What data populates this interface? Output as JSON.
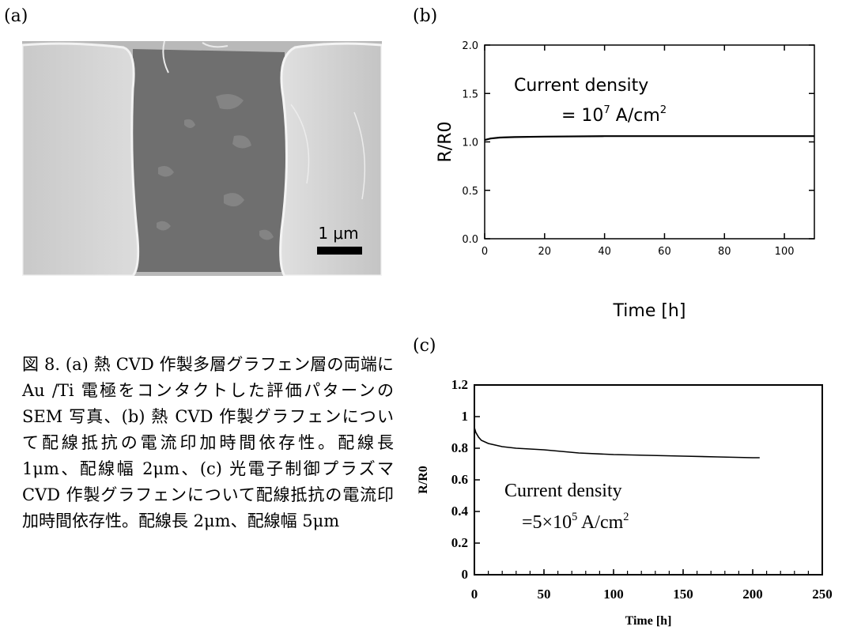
{
  "labels": {
    "a": "(a)",
    "b": "(b)",
    "c": "(c)"
  },
  "sem": {
    "scale_bar": "1 μm"
  },
  "caption": "図 8. (a) 熱 CVD 作製多層グラフェン層の両端にAu /Ti 電極をコンタクトした評価パターンの SEM 写真、(b) 熱 CVD 作製グラフェンについて配線抵抗の電流印加時間依存性。配線長 1μm、配線幅 2μm、(c) 光電子制御プラズマ CVD 作製グラフェンについて配線抵抗の電流印加時間依存性。配線長 2μm、配線幅 5μm",
  "chart_data": [
    {
      "id": "b",
      "type": "line",
      "xlabel": "Time [h]",
      "ylabel": "R/R0",
      "xlim": [
        0,
        110
      ],
      "ylim": [
        0,
        2.0
      ],
      "xticks": [
        0,
        20,
        40,
        60,
        80,
        100
      ],
      "xtick_labels": [
        "0",
        "20",
        "40",
        "60",
        "80",
        "100"
      ],
      "yticks": [
        0,
        0.5,
        1.0,
        1.5,
        2.0
      ],
      "ytick_labels": [
        "0.0",
        "0.5",
        "1.0",
        "1.5",
        "2.0"
      ],
      "annotation": [
        "Current density",
        "= 10",
        "7",
        " A/cm",
        "2"
      ],
      "grid": false,
      "series": [
        {
          "x": [
            0,
            2,
            5,
            10,
            20,
            40,
            60,
            80,
            100,
            110
          ],
          "y": [
            1.02,
            1.035,
            1.045,
            1.05,
            1.055,
            1.06,
            1.06,
            1.06,
            1.06,
            1.06
          ]
        }
      ]
    },
    {
      "id": "c",
      "type": "line",
      "xlabel": "Time [h]",
      "ylabel": "R/R0",
      "xlim": [
        0,
        250
      ],
      "ylim": [
        0,
        1.2
      ],
      "xticks": [
        0,
        50,
        100,
        150,
        200,
        250
      ],
      "xtick_labels": [
        "0",
        "50",
        "100",
        "150",
        "200",
        "250"
      ],
      "yticks": [
        0,
        0.2,
        0.4,
        0.6,
        0.8,
        1.0,
        1.2
      ],
      "ytick_labels": [
        "0",
        "0.2",
        "0.4",
        "0.6",
        "0.8",
        "1",
        "1.2"
      ],
      "annotation": [
        "Current density",
        "=5×10",
        "5",
        " A/cm",
        "2"
      ],
      "grid": false,
      "series": [
        {
          "x": [
            0,
            1,
            3,
            5,
            10,
            20,
            30,
            50,
            75,
            100,
            125,
            150,
            175,
            200,
            205
          ],
          "y": [
            0.93,
            0.9,
            0.87,
            0.85,
            0.83,
            0.81,
            0.8,
            0.79,
            0.77,
            0.76,
            0.755,
            0.75,
            0.745,
            0.74,
            0.74
          ]
        }
      ]
    }
  ]
}
